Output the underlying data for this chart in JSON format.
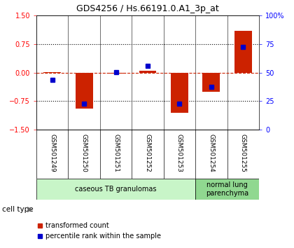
{
  "title": "GDS4256 / Hs.66191.0.A1_3p_at",
  "samples": [
    "GSM501249",
    "GSM501250",
    "GSM501251",
    "GSM501252",
    "GSM501253",
    "GSM501254",
    "GSM501255"
  ],
  "red_bars": [
    0.01,
    -0.95,
    -0.02,
    0.05,
    -1.05,
    -0.5,
    1.1
  ],
  "blue_dots": [
    -0.2,
    -0.82,
    0.01,
    0.18,
    -0.82,
    -0.37,
    0.68
  ],
  "ylim": [
    -1.5,
    1.5
  ],
  "yticks_left": [
    -1.5,
    -0.75,
    0,
    0.75,
    1.5
  ],
  "yticks_right_vals": [
    0,
    25,
    50,
    75,
    100
  ],
  "yticks_right_labels": [
    "0",
    "25",
    "50",
    "75",
    "100%"
  ],
  "cell_type_groups": [
    {
      "label": "caseous TB granulomas",
      "n": 5,
      "color": "#c8f5c8"
    },
    {
      "label": "normal lung\nparenchyma",
      "n": 2,
      "color": "#90d890"
    }
  ],
  "bar_color": "#cc2200",
  "dot_color": "#0000cc",
  "bg_color": "#ffffff",
  "tick_area_color": "#cccccc",
  "dashed_line_color": "#cc2200",
  "cell_type_label": "cell type",
  "legend_red": "transformed count",
  "legend_blue": "percentile rank within the sample"
}
